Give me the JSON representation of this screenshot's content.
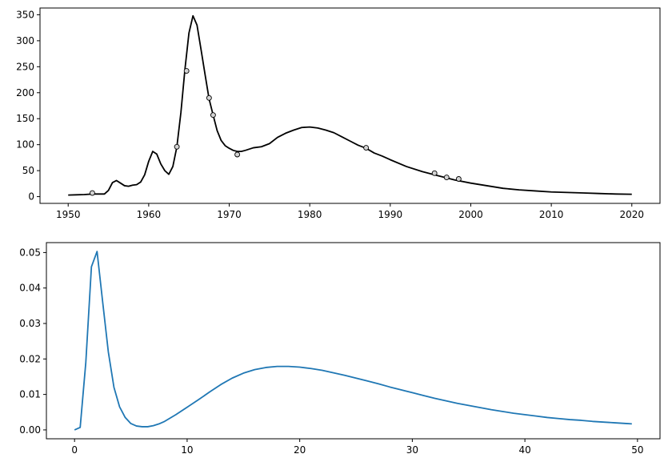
{
  "chart_data": [
    {
      "type": "line",
      "series": [
        {
          "color": "#000000",
          "x": [
            1950,
            1951,
            1952,
            1953,
            1954,
            1954.5,
            1955,
            1955.5,
            1956,
            1956.5,
            1957,
            1957.5,
            1958,
            1958.5,
            1959,
            1959.5,
            1960,
            1960.5,
            1961,
            1961.5,
            1962,
            1962.5,
            1963,
            1963.5,
            1964,
            1964.5,
            1965,
            1965.5,
            1966,
            1966.5,
            1967,
            1967.5,
            1968,
            1968.5,
            1969,
            1969.5,
            1970,
            1970.5,
            1971,
            1971.5,
            1972,
            1973,
            1974,
            1975,
            1976,
            1977,
            1978,
            1979,
            1980,
            1981,
            1982,
            1983,
            1984,
            1985,
            1986,
            1987,
            1988,
            1989,
            1990,
            1992,
            1994,
            1996,
            1998,
            2000,
            2002,
            2004,
            2006,
            2008,
            2010,
            2012,
            2014,
            2016,
            2018,
            2020
          ],
          "y": [
            3,
            3.5,
            4,
            5,
            5,
            5,
            12,
            27,
            31,
            26,
            21,
            20,
            22,
            23,
            28,
            42,
            68,
            87,
            82,
            63,
            50,
            43,
            58,
            96,
            162,
            245,
            315,
            348,
            330,
            283,
            235,
            188,
            157,
            127,
            108,
            98,
            93,
            89,
            87,
            87,
            89,
            94,
            96,
            102,
            114,
            122,
            128,
            133,
            134,
            132,
            128,
            123,
            115,
            107,
            99,
            93,
            84,
            78,
            71,
            58,
            48,
            40,
            32,
            26,
            21,
            16,
            13,
            11,
            9,
            8,
            7,
            6,
            5,
            4.5
          ]
        }
      ],
      "markers": {
        "x": [
          1953,
          1963.5,
          1964.7,
          1967.5,
          1968,
          1971,
          1987,
          1995.5,
          1997,
          1998.5
        ],
        "y": [
          7,
          96,
          242,
          190,
          157,
          81,
          94,
          45,
          37,
          34
        ]
      },
      "xlim": [
        1946.5,
        2023.5
      ],
      "ylim": [
        -13,
        363
      ],
      "xticks": [
        1950,
        1960,
        1970,
        1980,
        1990,
        2000,
        2010,
        2020
      ],
      "yticks": [
        0,
        50,
        100,
        150,
        200,
        250,
        300,
        350
      ],
      "title": "",
      "xlabel": "",
      "ylabel": "",
      "grid": false
    },
    {
      "type": "line",
      "series": [
        {
          "color": "#1f77b4",
          "x": [
            0,
            0.5,
            1,
            1.5,
            2,
            2.5,
            3,
            3.5,
            4,
            4.5,
            5,
            5.5,
            6,
            6.5,
            7,
            7.5,
            8,
            9,
            10,
            11,
            12,
            13,
            14,
            15,
            16,
            17,
            18,
            19,
            20,
            21,
            22,
            23,
            24,
            25,
            26,
            27,
            28,
            29,
            30,
            31,
            32,
            33,
            34,
            35,
            36,
            37,
            38,
            39,
            40,
            41,
            42,
            43,
            44,
            45,
            46,
            47,
            48,
            49,
            49.5
          ],
          "y": [
            0,
            0.0007,
            0.019,
            0.046,
            0.0503,
            0.036,
            0.022,
            0.012,
            0.0065,
            0.0035,
            0.0018,
            0.0011,
            0.0009,
            0.0009,
            0.0012,
            0.0017,
            0.0024,
            0.0043,
            0.0064,
            0.0085,
            0.0107,
            0.0128,
            0.0146,
            0.016,
            0.017,
            0.0176,
            0.0179,
            0.0179,
            0.0177,
            0.0173,
            0.0168,
            0.0161,
            0.0154,
            0.0146,
            0.0138,
            0.013,
            0.0121,
            0.0113,
            0.0105,
            0.0097,
            0.0089,
            0.0082,
            0.0075,
            0.0069,
            0.0063,
            0.0057,
            0.0052,
            0.0047,
            0.0043,
            0.0039,
            0.0035,
            0.0032,
            0.0029,
            0.0027,
            0.0024,
            0.0022,
            0.002,
            0.0018,
            0.0017
          ]
        }
      ],
      "xlim": [
        -2.5,
        52
      ],
      "ylim": [
        -0.0025,
        0.0528
      ],
      "xticks": [
        0,
        10,
        20,
        30,
        40,
        50
      ],
      "yticks": [
        0.0,
        0.01,
        0.02,
        0.03,
        0.04,
        0.05
      ],
      "ytick_labels": [
        "0.00",
        "0.01",
        "0.02",
        "0.03",
        "0.04",
        "0.05"
      ],
      "title": "",
      "xlabel": "",
      "ylabel": "",
      "grid": false
    }
  ]
}
